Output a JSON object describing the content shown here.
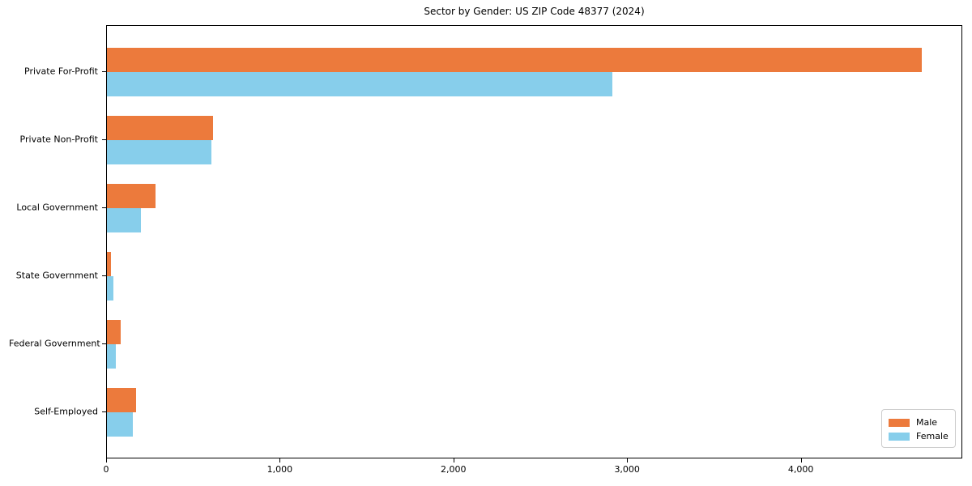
{
  "chart_data": {
    "type": "bar",
    "orientation": "horizontal",
    "title": "Sector by Gender: US ZIP Code 48377 (2024)",
    "xlabel": "",
    "ylabel": "",
    "categories": [
      "Private For-Profit",
      "Private Non-Profit",
      "Local Government",
      "State Government",
      "Federal Government",
      "Self-Employed"
    ],
    "series": [
      {
        "name": "Male",
        "color": "#EC7A3C",
        "values": [
          4690,
          610,
          280,
          25,
          80,
          170
        ]
      },
      {
        "name": "Female",
        "color": "#87CEEB",
        "values": [
          2910,
          600,
          195,
          35,
          50,
          150
        ]
      }
    ],
    "xlim": [
      0,
      4930
    ],
    "xticks": [
      0,
      1000,
      2000,
      3000,
      4000
    ],
    "xtick_labels": [
      "0",
      "1,000",
      "2,000",
      "3,000",
      "4,000"
    ],
    "grid": false,
    "legend": {
      "position": "lower right",
      "entries": [
        "Male",
        "Female"
      ]
    }
  }
}
